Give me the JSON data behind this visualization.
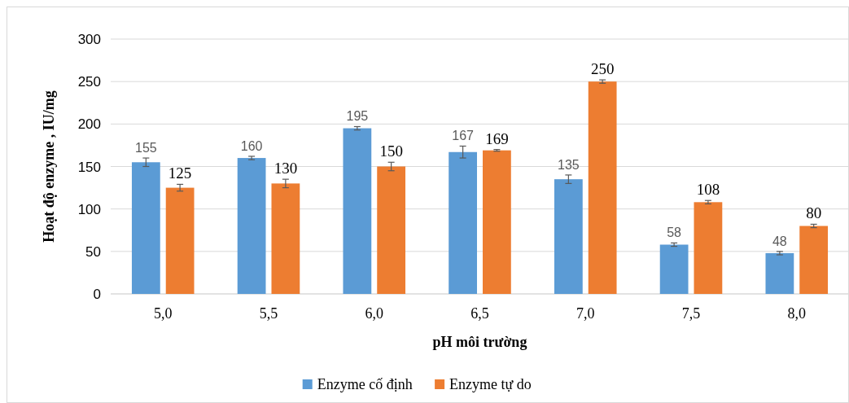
{
  "chart_data": {
    "type": "bar",
    "categories": [
      "5,0",
      "5,5",
      "6,0",
      "6,5",
      "7,0",
      "7,5",
      "8,0"
    ],
    "series": [
      {
        "name": "Enzyme cố định",
        "color": "#5b9bd5",
        "values": [
          155,
          160,
          195,
          167,
          135,
          58,
          48
        ],
        "errors": [
          5,
          2,
          2,
          7,
          5,
          2,
          2
        ]
      },
      {
        "name": "Enzyme tự do",
        "color": "#ed7d31",
        "values": [
          125,
          130,
          150,
          169,
          250,
          108,
          80
        ],
        "errors": [
          4,
          5,
          5,
          1,
          2,
          2,
          2
        ]
      }
    ],
    "xlabel": "pH môi trường",
    "ylabel": "Hoạt độ enzyme , IU/mg",
    "ylim": [
      0,
      300
    ],
    "yticks": [
      0,
      50,
      100,
      150,
      200,
      250,
      300
    ],
    "grid": "y",
    "legend": "bottom",
    "data_labels": true
  }
}
